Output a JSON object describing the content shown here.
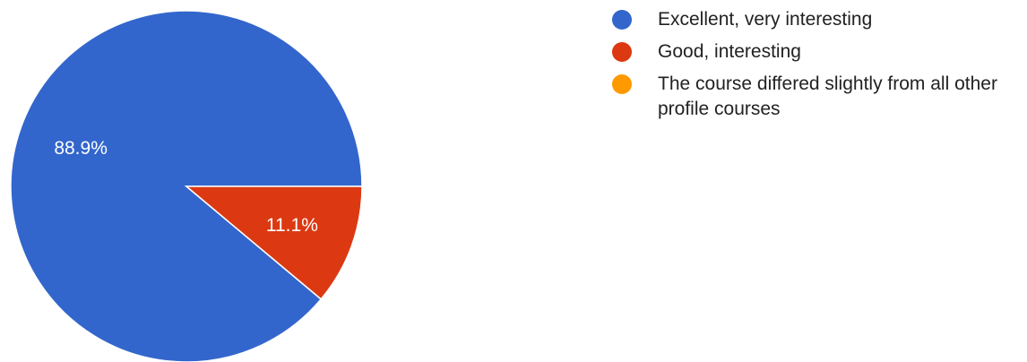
{
  "chart_data": {
    "type": "pie",
    "slices": [
      {
        "label": "Excellent, very interesting",
        "value": 88.9,
        "display": "88.9%",
        "color": "#3366cc"
      },
      {
        "label": "Good, interesting",
        "value": 11.1,
        "display": "11.1%",
        "color": "#dc3912"
      },
      {
        "label": "The course differed slightly from all other profile courses",
        "value": 0,
        "display": "",
        "color": "#ff9900"
      }
    ],
    "legend_position": "right"
  }
}
